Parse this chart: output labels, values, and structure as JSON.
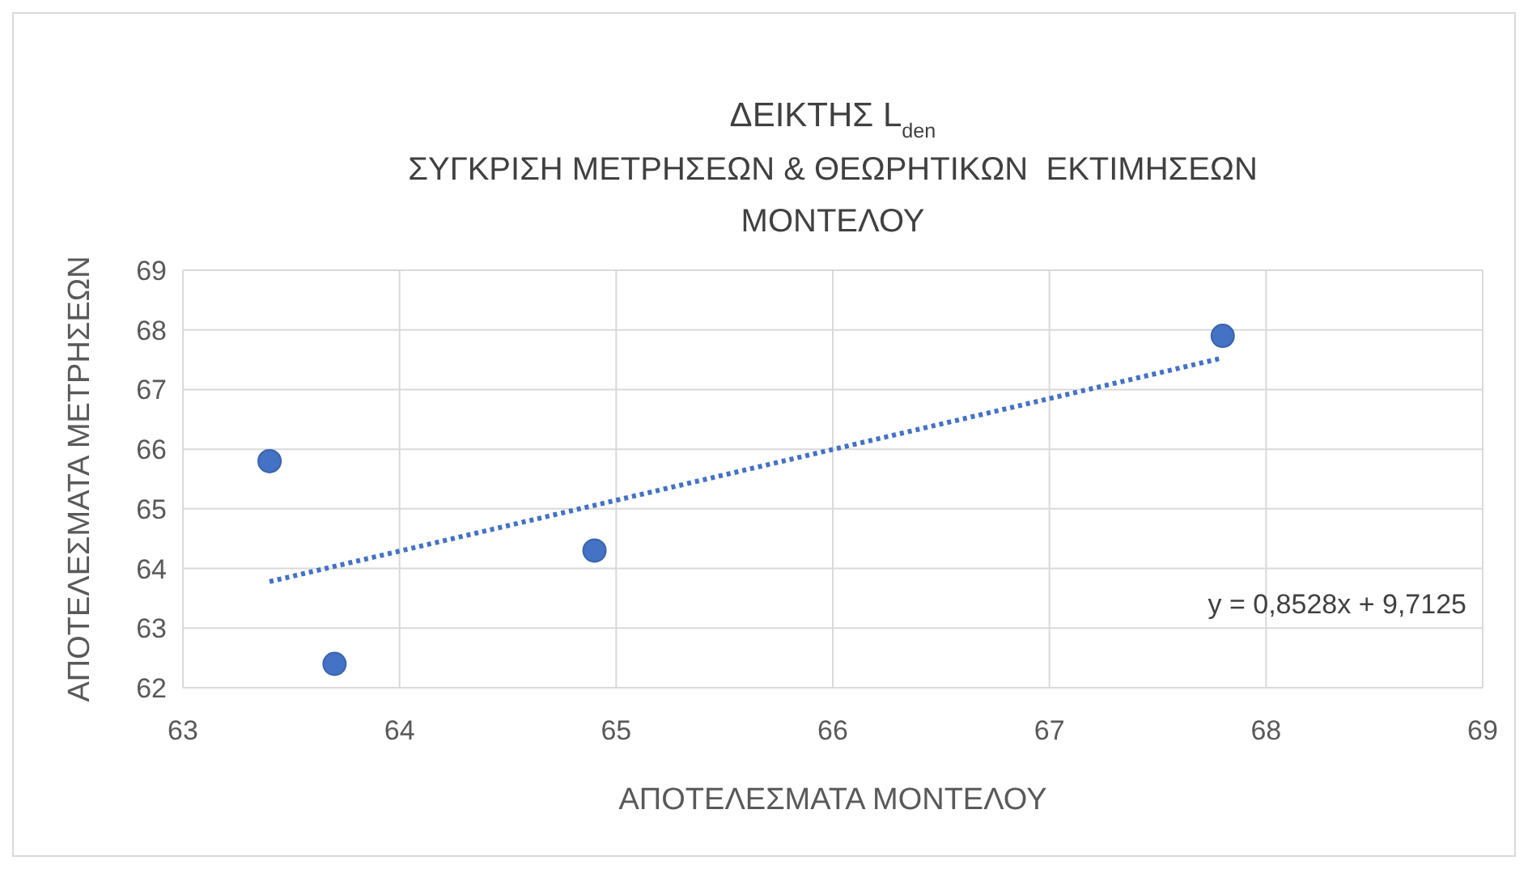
{
  "chart_data": {
    "type": "scatter",
    "title": "ΔΕΙΚΤΗΣ L$_{den}$",
    "subtitle": "ΣΥΓΚΡΙΣΗ ΜΕΤΡΗΣΕΩΝ & ΘΕΩΡΗΤΙΚΩΝ  ΕΚΤΙΜΗΣΕΩΝ ΜΟΝΤΕΛΟΥ",
    "xlabel": "ΑΠΟΤΕΛΕΣΜΑΤΑ ΜΟΝΤΕΛΟΥ",
    "ylabel": "ΑΠΟΤΕΛΕΣΜΑΤΑ ΜΕΤΡΗΣΕΩΝ",
    "series": [
      {
        "color": "#4472c4",
        "x": [
          63.4,
          63.7,
          64.9,
          67.8
        ],
        "values": [
          65.8,
          62.4,
          64.3,
          67.9
        ],
        "marker": "circle"
      },
      {
        "type": "line",
        "color": "#4472c4",
        "x": [
          63.4,
          67.8
        ],
        "values": [
          63.78,
          67.53
        ],
        "line_style": "dotted"
      }
    ],
    "annotations": [
      "y = 0,8528x + 9,7125"
    ],
    "xlim": [
      63,
      69
    ],
    "xticks": [
      63,
      64,
      65,
      66,
      67,
      68,
      69
    ],
    "ylim": [
      62,
      69
    ],
    "yticks": [
      62,
      63,
      64,
      65,
      66,
      67,
      68,
      69
    ],
    "grid": true
  }
}
